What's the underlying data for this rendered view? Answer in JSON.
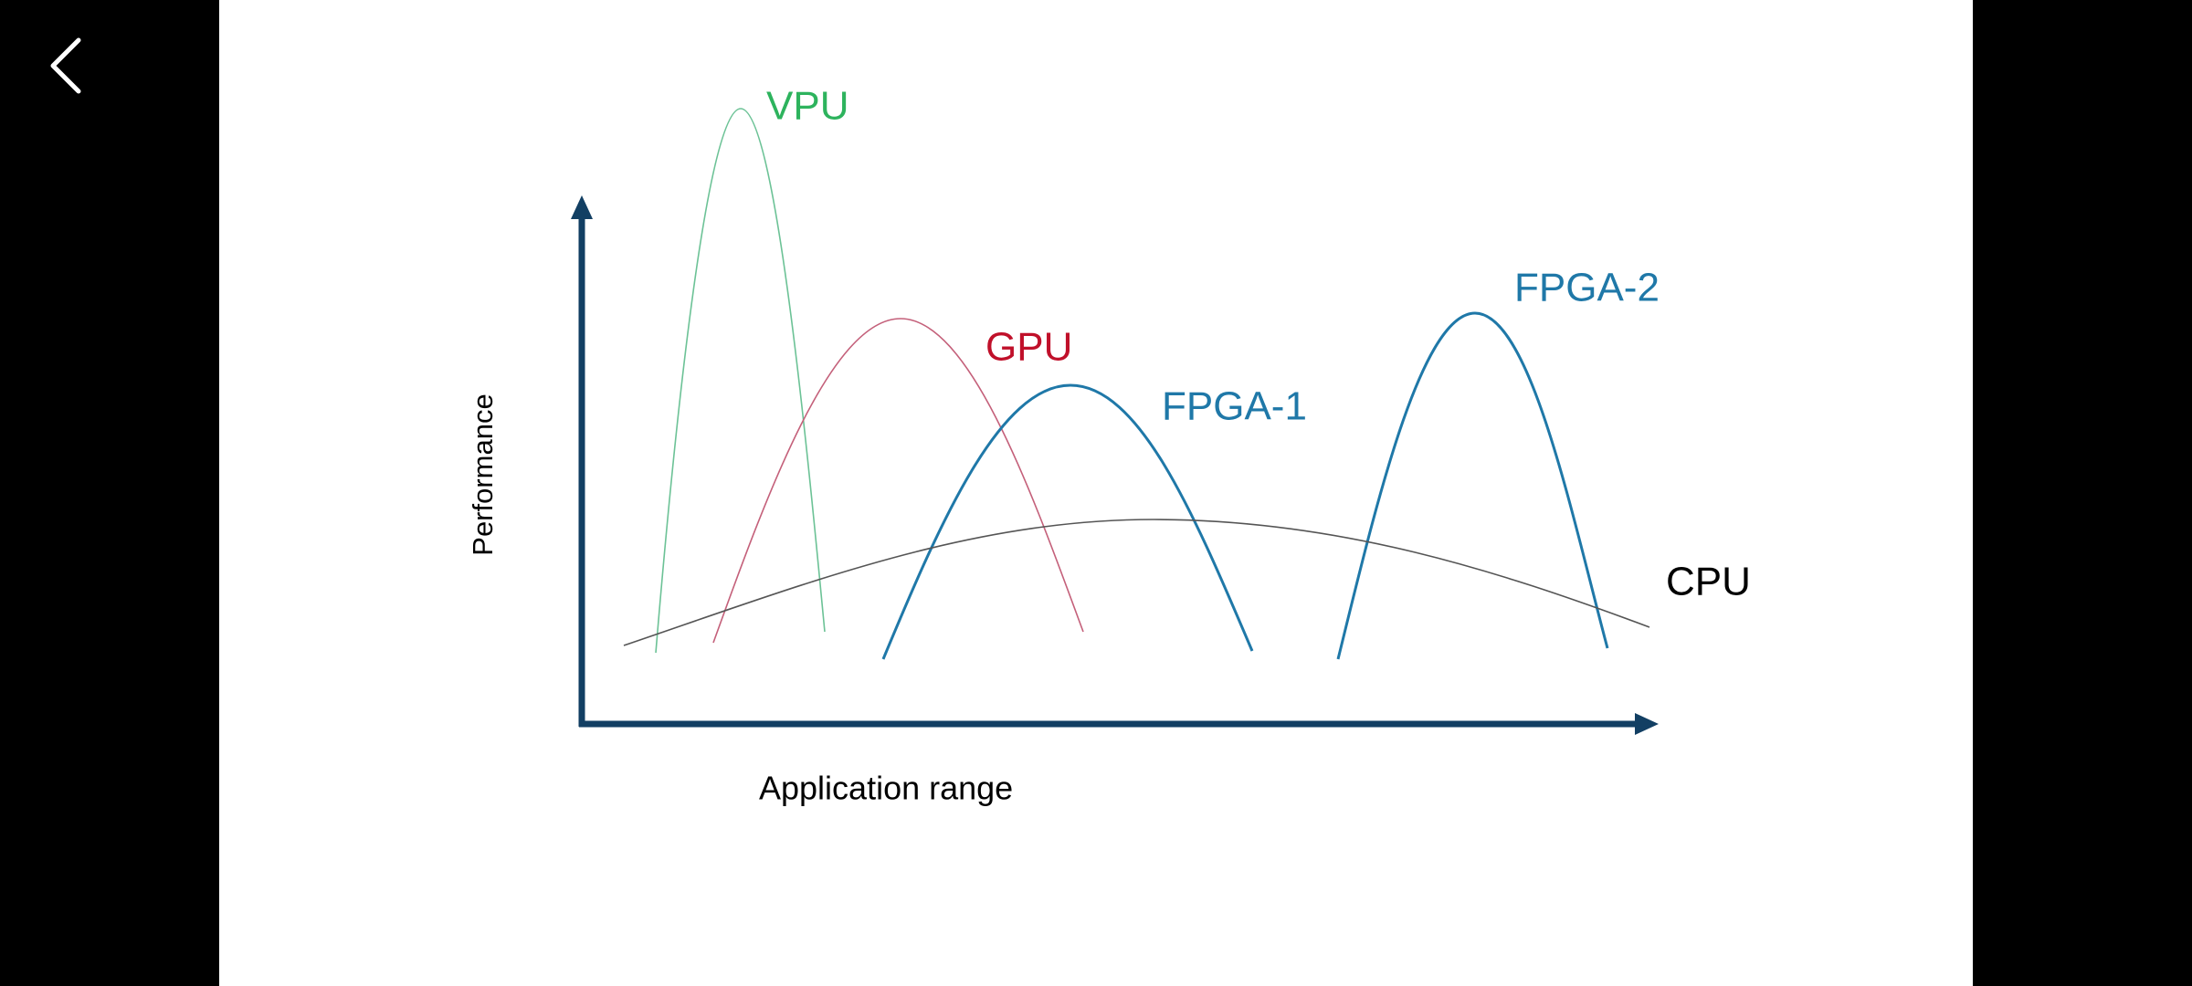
{
  "slide": {
    "y_axis_label": "Performance",
    "x_axis_label": "Application range",
    "curves": [
      {
        "label": "VPU"
      },
      {
        "label": "GPU"
      },
      {
        "label": "FPGA-1"
      },
      {
        "label": "FPGA-2"
      },
      {
        "label": "CPU"
      }
    ]
  }
}
